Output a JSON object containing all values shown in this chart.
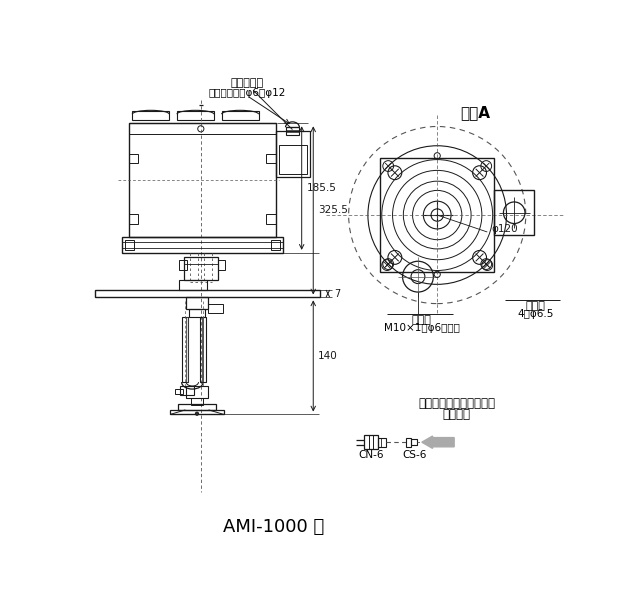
{
  "title": "AMI-1000 型",
  "view_a_label": "矢視A",
  "annotation_cable_exit": "電線引出口",
  "annotation_cable_spec": "適応ケーブルφ6～φ12",
  "dim_185_5": "185.5",
  "dim_325_5": "325.5",
  "dim_140": "140",
  "dim_7": "7",
  "dim_120": "φ120",
  "label_discharge": "吐出口",
  "label_discharge_spec": "M10×1（φ6配管）",
  "label_mount_hole": "取付穴",
  "label_mount_spec": "4－φ6.5",
  "label_piping_1": "吐出口に接続するための",
  "label_piping_2": "配管部品",
  "label_cn6": "CN-6",
  "label_cs6": "CS-6",
  "bg_color": "#ffffff",
  "line_color": "#1a1a1a",
  "dim_line_color": "#1a1a1a",
  "dashed_color": "#555555"
}
